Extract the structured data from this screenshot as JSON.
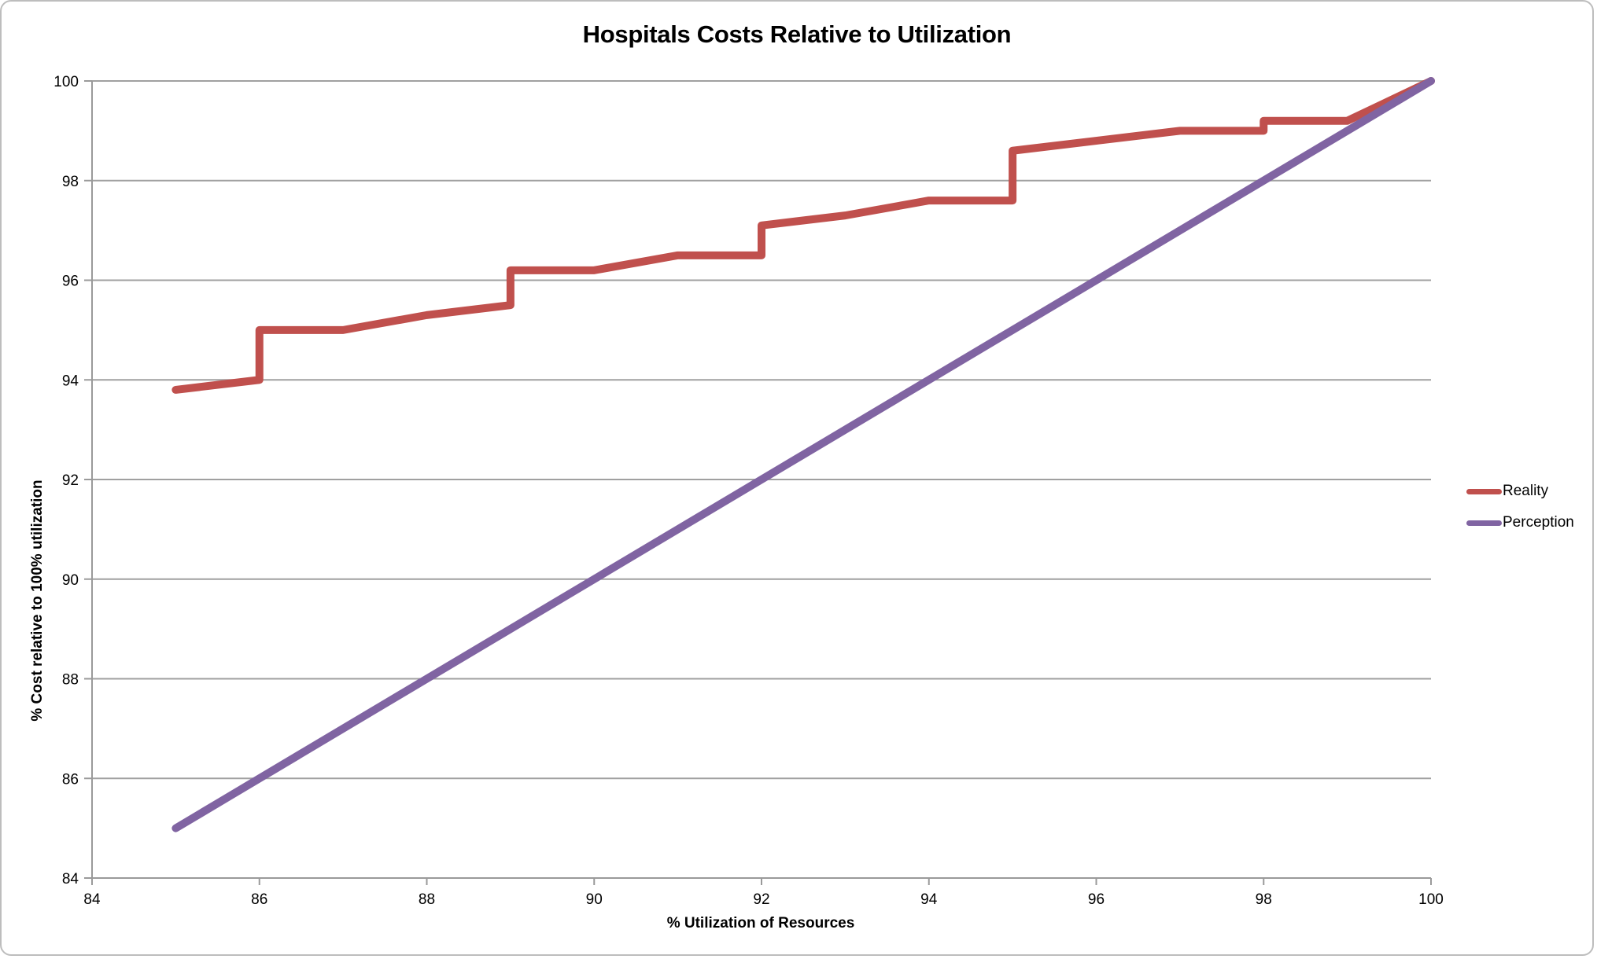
{
  "chart": {
    "title": "Hospitals Costs Relative to Utilization",
    "x_axis_title": "% Utilization of Resources",
    "y_axis_title": "% Cost relative to 100% utilization"
  },
  "chart_data": {
    "type": "line",
    "title": "Hospitals Costs Relative to Utilization",
    "xlabel": "% Utilization of Resources",
    "ylabel": "% Cost relative to 100% utilization",
    "xlim": [
      84,
      100
    ],
    "ylim": [
      84,
      100
    ],
    "x_ticks": [
      84,
      86,
      88,
      90,
      92,
      94,
      96,
      98,
      100
    ],
    "y_ticks": [
      84,
      86,
      88,
      90,
      92,
      94,
      96,
      98,
      100
    ],
    "grid": "horizontal-only",
    "legend_position": "right",
    "series": [
      {
        "name": "Reality",
        "color": "#c0504d",
        "points": [
          [
            85,
            93.8
          ],
          [
            86,
            94.0
          ],
          [
            86,
            95.0
          ],
          [
            87,
            95.0
          ],
          [
            88,
            95.3
          ],
          [
            89,
            95.5
          ],
          [
            89,
            96.2
          ],
          [
            90,
            96.2
          ],
          [
            91,
            96.5
          ],
          [
            92,
            96.5
          ],
          [
            92,
            97.1
          ],
          [
            93,
            97.3
          ],
          [
            94,
            97.6
          ],
          [
            95,
            97.6
          ],
          [
            95,
            98.6
          ],
          [
            96,
            98.8
          ],
          [
            97,
            99.0
          ],
          [
            98,
            99.0
          ],
          [
            98,
            99.2
          ],
          [
            99,
            99.2
          ],
          [
            100,
            100
          ]
        ]
      },
      {
        "name": "Perception",
        "color": "#8064a2",
        "points": [
          [
            85,
            85
          ],
          [
            100,
            100
          ]
        ]
      }
    ]
  },
  "style_colors": {
    "gridline": "#a0a0a0",
    "axis": "#9a9a9a",
    "background": "#ffffff"
  }
}
